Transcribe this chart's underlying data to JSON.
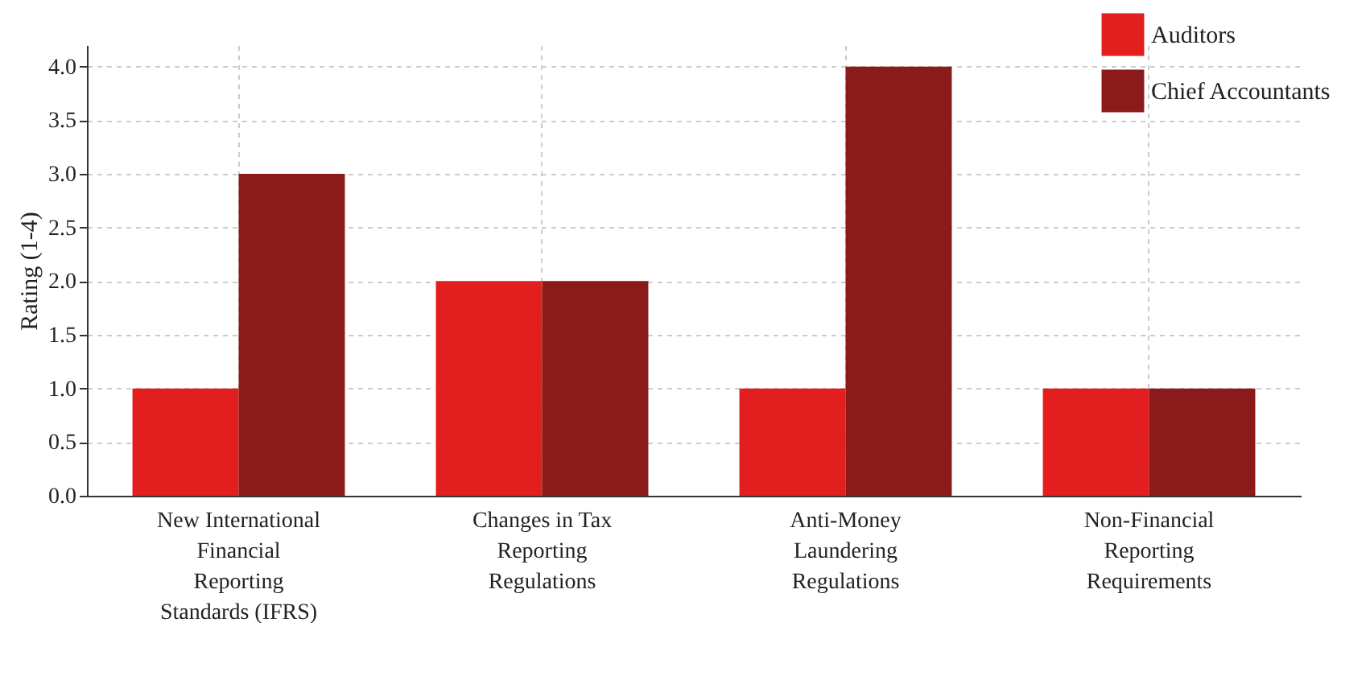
{
  "chart_data": {
    "type": "bar",
    "ylabel": "Rating (1-4)",
    "categories": [
      "New International Financial Reporting Standards (IFRS)",
      "Changes in Tax Reporting Regulations",
      "Anti-Money Laundering Regulations",
      "Non-Financial Reporting Requirements"
    ],
    "series": [
      {
        "name": "Auditors",
        "color": "#e31e1e",
        "values": [
          1,
          2,
          1,
          1
        ]
      },
      {
        "name": "Chief Accountants",
        "color": "#8b1a1a",
        "values": [
          3,
          2,
          4,
          1
        ]
      }
    ],
    "ylim": [
      0,
      4.2
    ],
    "yticks": [
      {
        "value": 0,
        "label": "0.0"
      },
      0.5,
      {
        "value": 1,
        "label": "1.0"
      },
      1.5,
      {
        "value": 2,
        "label": "2.0"
      },
      2.5,
      {
        "value": 3,
        "label": "3.0"
      },
      3.5,
      {
        "value": 4,
        "label": "4.0"
      }
    ],
    "grid": true,
    "legend": "top right"
  }
}
